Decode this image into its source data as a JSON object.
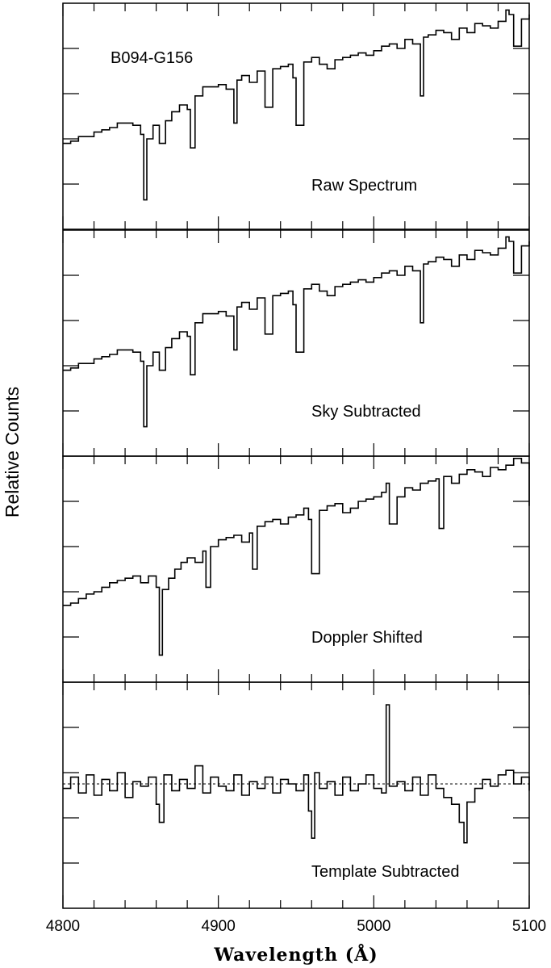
{
  "chart_data": {
    "type": "line",
    "object_label": "B094-G156",
    "xlabel": "Wavelength (Å)",
    "ylabel": "Relative Counts",
    "xlim": [
      4800,
      5100
    ],
    "x_ticks": [
      "4800",
      "4900",
      "5000",
      "5100"
    ],
    "y_tick_labels_shown": false,
    "panels": [
      {
        "label": "Raw Spectrum",
        "ylim": [
          0,
          10
        ],
        "baseline": null,
        "series": [
          {
            "x": [
              4800,
              4805,
              4810,
              4815,
              4820,
              4825,
              4830,
              4835,
              4840,
              4845,
              4850,
              4852,
              4854,
              4858,
              4862,
              4866,
              4870,
              4875,
              4880,
              4882,
              4885,
              4890,
              4895,
              4900,
              4905,
              4910,
              4912,
              4915,
              4920,
              4925,
              4930,
              4935,
              4940,
              4945,
              4948,
              4950,
              4955,
              4960,
              4965,
              4970,
              4975,
              4980,
              4985,
              4990,
              4995,
              5000,
              5005,
              5010,
              5015,
              5020,
              5025,
              5030,
              5032,
              5035,
              5040,
              5045,
              5050,
              5055,
              5060,
              5065,
              5070,
              5075,
              5080,
              5085,
              5087,
              5090,
              5095,
              5100
            ],
            "y": [
              3.8,
              3.9,
              4.1,
              4.1,
              4.3,
              4.4,
              4.5,
              4.7,
              4.7,
              4.6,
              4.2,
              1.3,
              4.0,
              4.6,
              3.8,
              4.8,
              5.2,
              5.5,
              5.3,
              3.6,
              5.9,
              6.3,
              6.3,
              6.4,
              6.2,
              4.7,
              6.6,
              6.8,
              6.5,
              7.0,
              5.4,
              7.1,
              7.2,
              7.3,
              6.7,
              4.6,
              7.4,
              7.6,
              7.3,
              7.1,
              7.5,
              7.6,
              7.7,
              7.8,
              7.7,
              7.9,
              8.1,
              8.2,
              8.0,
              8.4,
              8.2,
              5.9,
              8.5,
              8.6,
              8.8,
              8.7,
              8.4,
              8.9,
              8.7,
              9.1,
              9.0,
              8.9,
              9.2,
              9.7,
              9.5,
              8.1,
              9.3,
              9.5
            ]
          }
        ]
      },
      {
        "label": "Sky Subtracted",
        "ylim": [
          0,
          10
        ],
        "baseline": null,
        "series": [
          {
            "x": [
              4800,
              4805,
              4810,
              4815,
              4820,
              4825,
              4830,
              4835,
              4840,
              4845,
              4850,
              4852,
              4854,
              4858,
              4862,
              4866,
              4870,
              4875,
              4880,
              4882,
              4885,
              4890,
              4895,
              4900,
              4905,
              4910,
              4912,
              4915,
              4920,
              4925,
              4930,
              4935,
              4940,
              4945,
              4948,
              4950,
              4955,
              4960,
              4965,
              4970,
              4975,
              4980,
              4985,
              4990,
              4995,
              5000,
              5005,
              5010,
              5015,
              5020,
              5025,
              5030,
              5032,
              5035,
              5040,
              5045,
              5050,
              5055,
              5060,
              5065,
              5070,
              5075,
              5080,
              5085,
              5087,
              5090,
              5095,
              5100
            ],
            "y": [
              3.8,
              3.9,
              4.1,
              4.1,
              4.3,
              4.4,
              4.5,
              4.7,
              4.7,
              4.6,
              4.2,
              1.3,
              4.0,
              4.6,
              3.8,
              4.8,
              5.2,
              5.5,
              5.3,
              3.6,
              5.9,
              6.3,
              6.3,
              6.4,
              6.2,
              4.7,
              6.6,
              6.8,
              6.5,
              7.0,
              5.4,
              7.1,
              7.2,
              7.3,
              6.7,
              4.6,
              7.4,
              7.6,
              7.3,
              7.1,
              7.5,
              7.6,
              7.7,
              7.8,
              7.7,
              7.9,
              8.1,
              8.2,
              8.0,
              8.4,
              8.2,
              5.9,
              8.5,
              8.6,
              8.8,
              8.7,
              8.4,
              8.9,
              8.7,
              9.1,
              9.0,
              8.9,
              9.2,
              9.7,
              9.5,
              8.1,
              9.3,
              9.5
            ]
          }
        ]
      },
      {
        "label": "Doppler Shifted",
        "ylim": [
          0,
          10
        ],
        "baseline": null,
        "series": [
          {
            "x": [
              4800,
              4805,
              4810,
              4815,
              4820,
              4825,
              4830,
              4835,
              4840,
              4845,
              4850,
              4855,
              4860,
              4862,
              4864,
              4868,
              4872,
              4876,
              4880,
              4885,
              4890,
              4892,
              4895,
              4900,
              4905,
              4910,
              4915,
              4920,
              4922,
              4925,
              4930,
              4935,
              4940,
              4945,
              4950,
              4955,
              4958,
              4960,
              4965,
              4970,
              4975,
              4980,
              4985,
              4990,
              4995,
              5000,
              5005,
              5008,
              5010,
              5015,
              5020,
              5025,
              5030,
              5035,
              5040,
              5042,
              5045,
              5050,
              5055,
              5060,
              5065,
              5070,
              5075,
              5080,
              5085,
              5090,
              5095,
              5100
            ],
            "y": [
              3.4,
              3.5,
              3.7,
              3.9,
              4.0,
              4.2,
              4.4,
              4.5,
              4.6,
              4.7,
              4.4,
              4.7,
              4.2,
              1.2,
              4.1,
              4.6,
              5.0,
              5.3,
              5.5,
              5.3,
              5.8,
              4.2,
              6.0,
              6.3,
              6.4,
              6.5,
              6.2,
              6.6,
              5.0,
              6.9,
              7.1,
              7.2,
              7.0,
              7.3,
              7.4,
              7.7,
              7.2,
              4.8,
              7.6,
              7.8,
              7.9,
              7.5,
              7.7,
              8.0,
              8.1,
              8.2,
              8.4,
              8.8,
              7.0,
              8.2,
              8.6,
              8.5,
              8.8,
              8.9,
              9.0,
              6.8,
              9.1,
              8.8,
              9.2,
              9.4,
              9.3,
              9.1,
              9.5,
              9.4,
              9.6,
              9.9,
              9.7,
              7.8
            ]
          }
        ]
      },
      {
        "label": "Template Subtracted",
        "ylim": [
          0,
          10
        ],
        "baseline": 5.5,
        "series": [
          {
            "x": [
              4800,
              4805,
              4810,
              4815,
              4820,
              4825,
              4830,
              4835,
              4840,
              4845,
              4850,
              4855,
              4860,
              4862,
              4865,
              4870,
              4875,
              4880,
              4885,
              4890,
              4895,
              4900,
              4905,
              4910,
              4915,
              4920,
              4925,
              4930,
              4935,
              4940,
              4945,
              4950,
              4955,
              4958,
              4960,
              4962,
              4965,
              4970,
              4975,
              4980,
              4985,
              4990,
              4995,
              5000,
              5005,
              5008,
              5010,
              5015,
              5020,
              5025,
              5030,
              5035,
              5040,
              5045,
              5050,
              5055,
              5058,
              5060,
              5065,
              5070,
              5075,
              5080,
              5085,
              5090,
              5095,
              5100
            ],
            "y": [
              5.3,
              5.8,
              5.1,
              5.9,
              5.0,
              5.7,
              5.2,
              6.0,
              4.9,
              5.6,
              5.4,
              5.8,
              4.6,
              3.8,
              5.9,
              5.2,
              5.7,
              5.3,
              6.3,
              5.1,
              5.8,
              5.4,
              5.2,
              5.9,
              5.0,
              5.6,
              5.3,
              5.8,
              5.1,
              5.7,
              5.5,
              5.2,
              5.9,
              4.3,
              3.1,
              6.0,
              5.3,
              5.6,
              5.0,
              5.8,
              5.2,
              5.5,
              5.9,
              5.3,
              5.1,
              9.0,
              5.4,
              5.6,
              5.2,
              5.8,
              5.0,
              5.9,
              5.3,
              4.9,
              4.6,
              3.8,
              2.9,
              4.7,
              5.3,
              5.7,
              5.4,
              5.9,
              6.1,
              5.5,
              5.8,
              5.2
            ]
          }
        ]
      }
    ]
  }
}
